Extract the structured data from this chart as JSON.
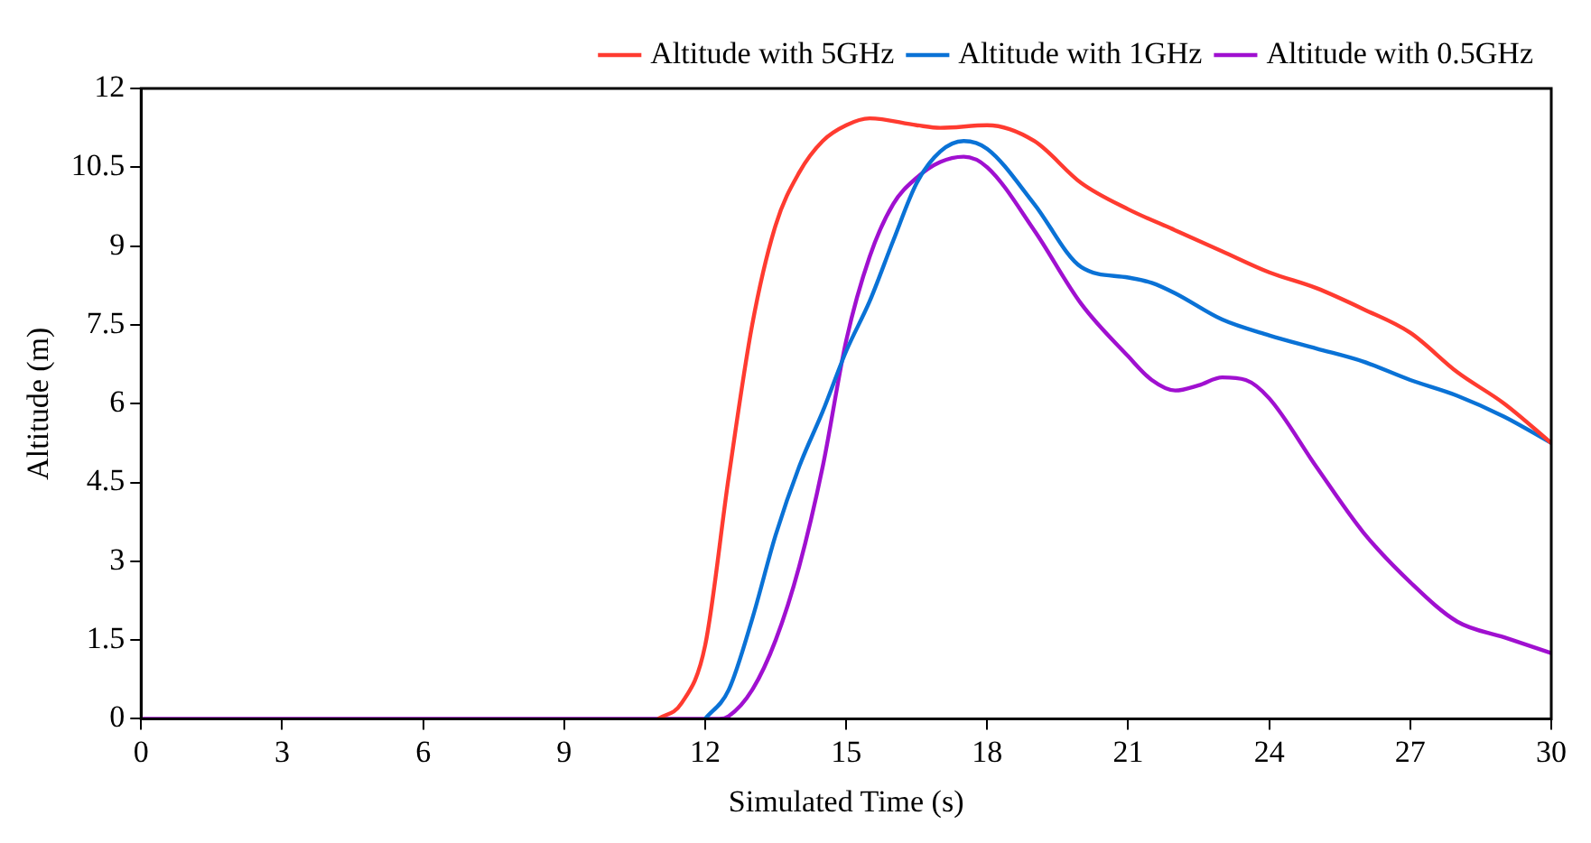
{
  "chart_data": {
    "type": "line",
    "xlabel": "Simulated Time (s)",
    "ylabel": "Altitude (m)",
    "xlim": [
      0,
      30
    ],
    "xticks": [
      0,
      3,
      6,
      9,
      12,
      15,
      18,
      21,
      24,
      27,
      30
    ],
    "ylim": [
      0,
      12
    ],
    "yticks": [
      0,
      1.5,
      3,
      4.5,
      6,
      7.5,
      9,
      10.5,
      12
    ],
    "grid": false,
    "legend": "top right",
    "marker": "none",
    "line_style": "solid",
    "series": [
      {
        "name": "Altitude with 5GHz",
        "color": "#ff3b30",
        "x": [
          11,
          11.5,
          12,
          12.5,
          13,
          13.5,
          14,
          14.5,
          15,
          15.5,
          16.5,
          17,
          18,
          19,
          20,
          21,
          22,
          23,
          24,
          25,
          26,
          27,
          28,
          29,
          30
        ],
        "values": [
          0,
          0.3,
          1.4,
          4.6,
          7.5,
          9.4,
          10.4,
          11.0,
          11.3,
          11.43,
          11.3,
          11.25,
          11.3,
          11.0,
          10.2,
          9.7,
          9.3,
          8.9,
          8.5,
          8.2,
          7.8,
          7.35,
          6.6,
          6.0,
          5.25
        ]
      },
      {
        "name": "Altitude with 1GHz",
        "color": "#0a72d6",
        "x": [
          12,
          12.5,
          13,
          13.5,
          14,
          14.5,
          15,
          15.5,
          16,
          16.5,
          17,
          17.5,
          18,
          19,
          20,
          21,
          21.5,
          22,
          23,
          24,
          25,
          26,
          27,
          28,
          29,
          30
        ],
        "values": [
          0,
          0.55,
          1.9,
          3.5,
          4.8,
          5.85,
          7.0,
          7.95,
          9.1,
          10.2,
          10.8,
          11.0,
          10.85,
          9.8,
          8.6,
          8.4,
          8.3,
          8.1,
          7.6,
          7.3,
          7.05,
          6.8,
          6.45,
          6.15,
          5.75,
          5.25
        ]
      },
      {
        "name": "Altitude with 0.5GHz",
        "color": "#a010d0",
        "x": [
          0,
          12.3,
          12.5,
          13,
          13.5,
          14,
          14.5,
          15,
          15.5,
          16,
          16.5,
          17,
          17.5,
          18,
          19,
          20,
          21,
          21.5,
          22,
          22.5,
          23,
          23.5,
          24,
          25,
          26,
          27,
          28,
          29,
          30
        ],
        "values": [
          0,
          0,
          0.05,
          0.55,
          1.5,
          2.9,
          4.8,
          7.2,
          8.8,
          9.8,
          10.3,
          10.6,
          10.7,
          10.5,
          9.3,
          7.9,
          6.9,
          6.45,
          6.25,
          6.35,
          6.5,
          6.45,
          6.1,
          4.8,
          3.55,
          2.6,
          1.85,
          1.55,
          1.25
        ]
      }
    ]
  }
}
